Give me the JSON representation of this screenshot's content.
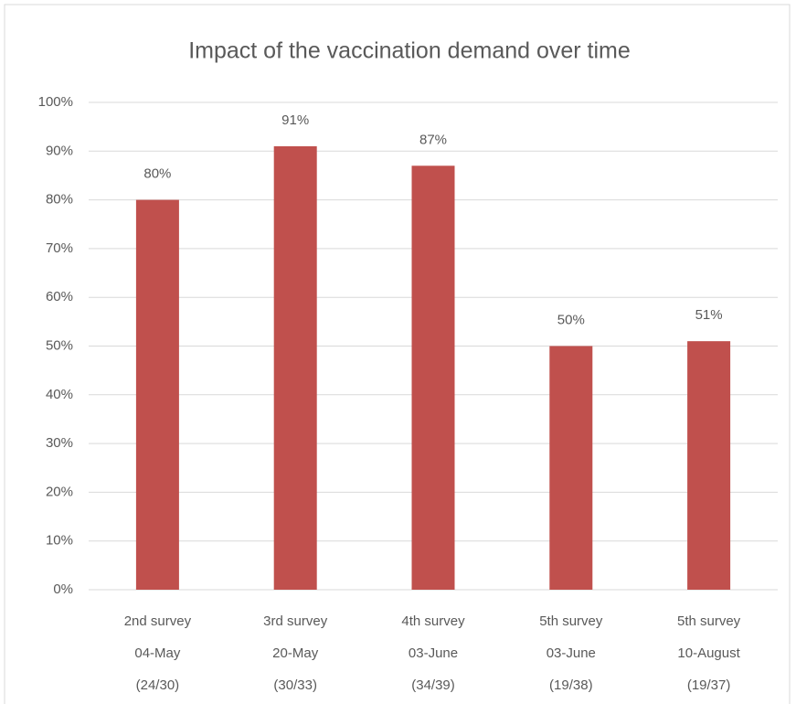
{
  "chart_data": {
    "type": "bar",
    "title": "Impact of the vaccination demand over time",
    "categories": [
      [
        "2nd survey",
        "04-May",
        "(24/30)"
      ],
      [
        "3rd survey",
        "20-May",
        "(30/33)"
      ],
      [
        "4th survey",
        "03-June",
        "(34/39)"
      ],
      [
        "5th survey",
        "03-June",
        "(19/38)"
      ],
      [
        "5th survey",
        "10-August",
        "(19/37)"
      ]
    ],
    "values": [
      80,
      91,
      87,
      50,
      51
    ],
    "value_labels": [
      "80%",
      "91%",
      "87%",
      "50%",
      "51%"
    ],
    "color": "#c0504d",
    "ylim": [
      0,
      100
    ],
    "yticks": [
      {
        "value": 0,
        "label": "0%"
      },
      {
        "value": 10,
        "label": "10%"
      },
      {
        "value": 20,
        "label": "20%"
      },
      {
        "value": 30,
        "label": "30%"
      },
      {
        "value": 40,
        "label": "40%"
      },
      {
        "value": 50,
        "label": "50%"
      },
      {
        "value": 60,
        "label": "60%"
      },
      {
        "value": 70,
        "label": "70%"
      },
      {
        "value": 80,
        "label": "80%"
      },
      {
        "value": 90,
        "label": "90%"
      },
      {
        "value": 100,
        "label": "100%"
      }
    ],
    "grid": true
  }
}
